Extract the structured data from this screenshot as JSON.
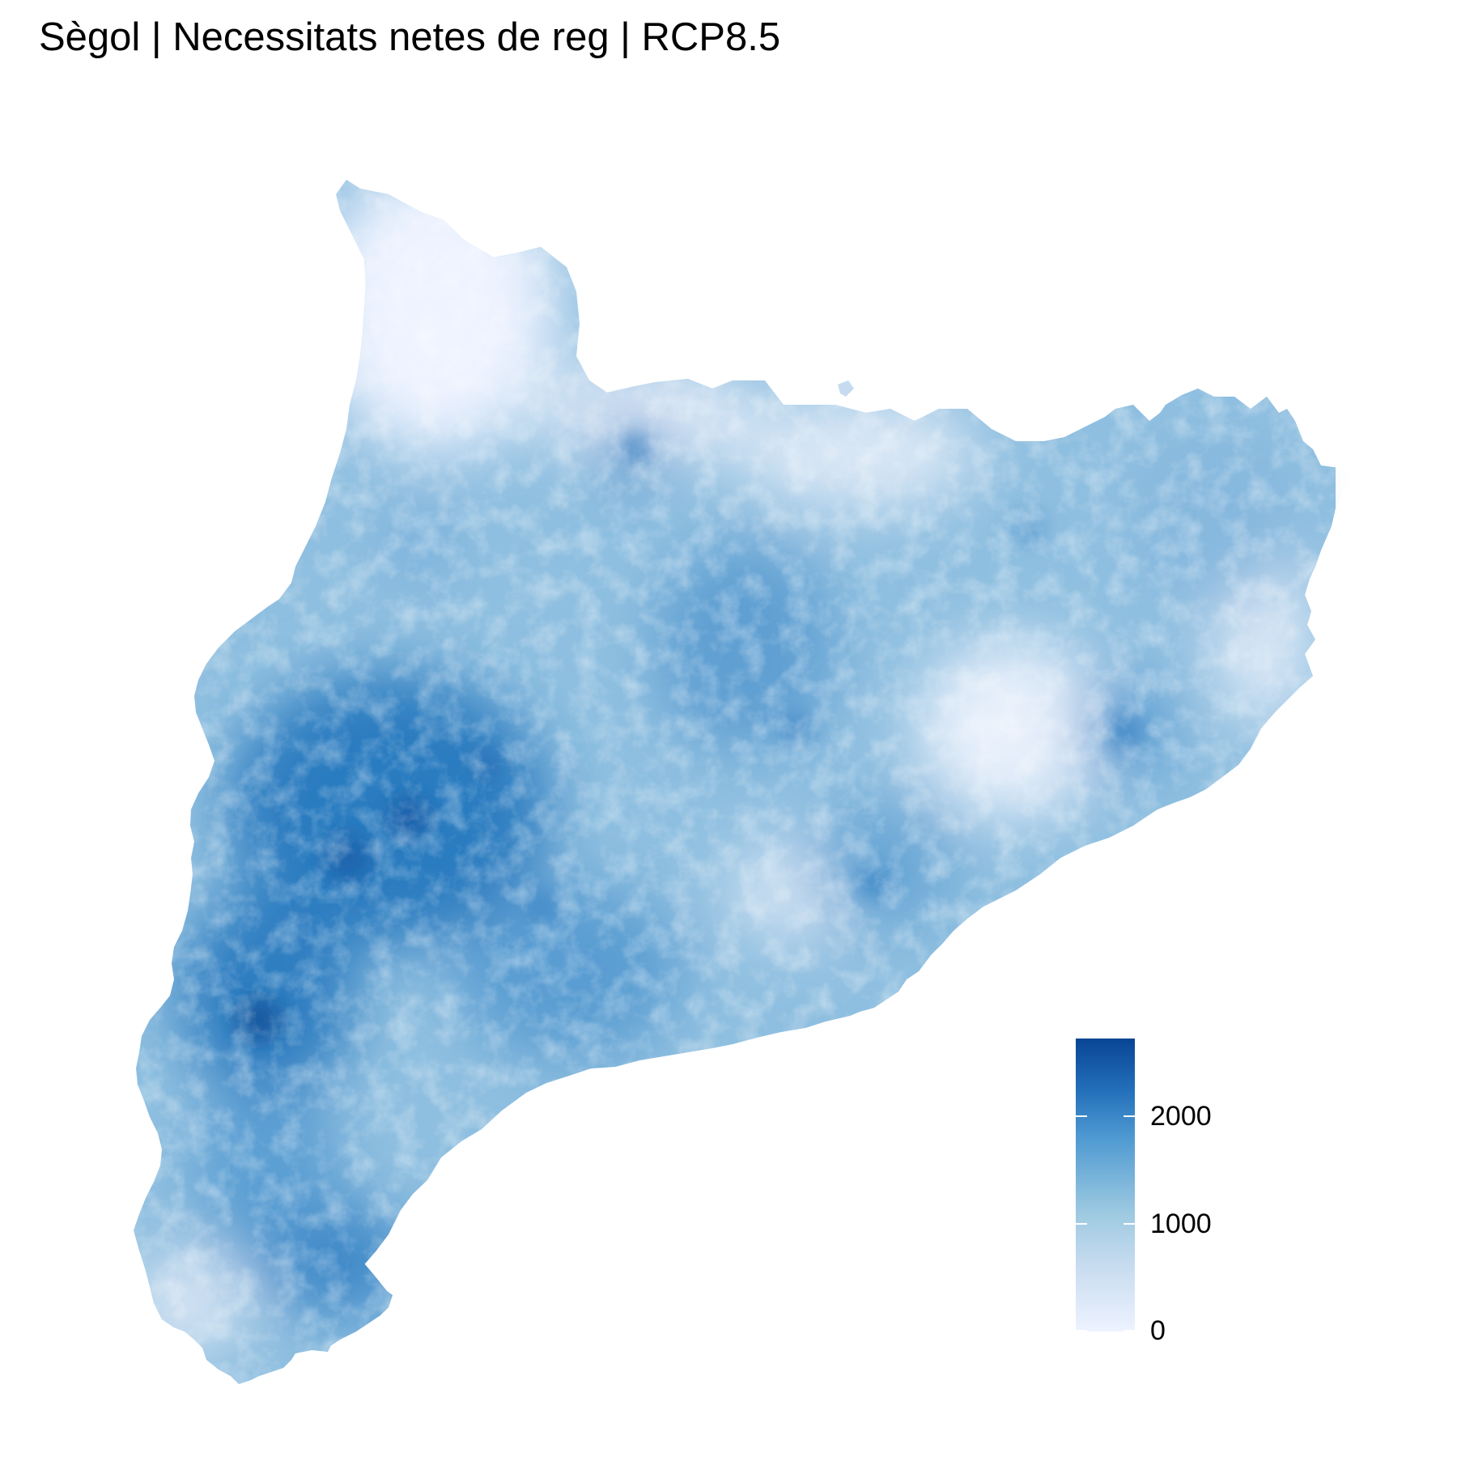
{
  "title": "Sègol | Necessitats netes de reg | RCP8.5",
  "legend": {
    "ticks": [
      {
        "value": 2000,
        "label": "2000"
      },
      {
        "value": 1000,
        "label": "1000"
      },
      {
        "value": 0,
        "label": "0"
      }
    ],
    "range": [
      0,
      2700
    ],
    "colors": {
      "low": "#eef3ff",
      "mid": "#9ecae1",
      "high": "#084594"
    }
  },
  "map": {
    "region": "Catalunya",
    "fill_color_scale": "blues"
  }
}
